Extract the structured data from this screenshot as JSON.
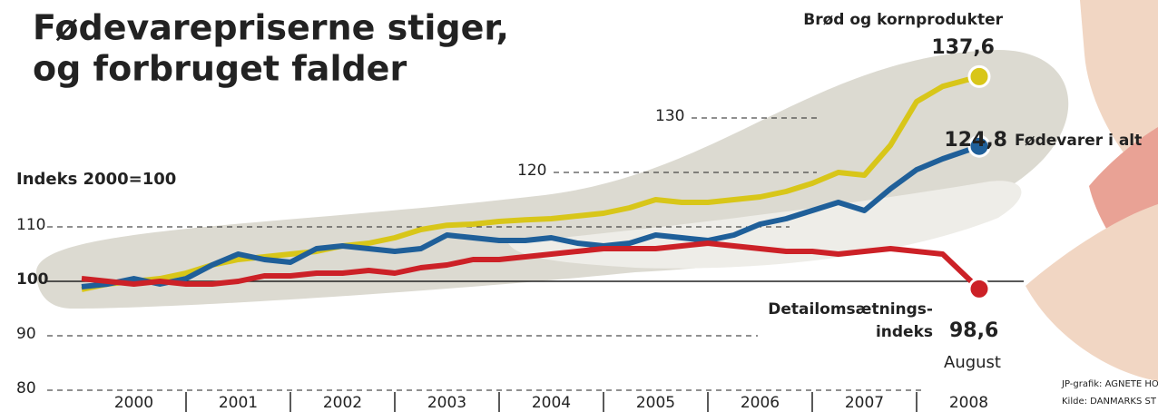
{
  "chart_data": {
    "type": "line",
    "title": [
      "Fødevarepriserne stiger,",
      "og forbruget falder"
    ],
    "y_label": "Indeks 2000=100",
    "x": [
      2000,
      2000.25,
      2000.5,
      2000.75,
      2001,
      2001.25,
      2001.5,
      2001.75,
      2002,
      2002.25,
      2002.5,
      2002.75,
      2003,
      2003.25,
      2003.5,
      2003.75,
      2004,
      2004.25,
      2004.5,
      2004.75,
      2005,
      2005.25,
      2005.5,
      2005.75,
      2006,
      2006.25,
      2006.5,
      2006.75,
      2007,
      2007.25,
      2007.5,
      2007.75,
      2008,
      2008.25,
      2008.6
    ],
    "series": [
      {
        "name": [
          "Brød og kornprodukter"
        ],
        "color": "#d8c619",
        "values": [
          98.5,
          99.5,
          100,
          100.5,
          101.5,
          103,
          104,
          104.5,
          105,
          105.5,
          106.5,
          107,
          108,
          109.5,
          110.3,
          110.5,
          111,
          111.3,
          111.5,
          112,
          112.5,
          113.5,
          115,
          114.5,
          114.5,
          115,
          115.5,
          116.5,
          118,
          120,
          119.5,
          125,
          133,
          135.8,
          137.6
        ],
        "value_labels": [
          null,
          null,
          null,
          null,
          null,
          null,
          null,
          null,
          null,
          null,
          null,
          null,
          null,
          null,
          null,
          null,
          null,
          null,
          null,
          null,
          null,
          null,
          null,
          null,
          null,
          null,
          null,
          null,
          null,
          null,
          null,
          null,
          null,
          null,
          "137,6"
        ]
      },
      {
        "name": [
          "Fødevarer i alt"
        ],
        "color": "#1f5f99",
        "values": [
          99,
          99.5,
          100.5,
          99.5,
          100.5,
          103,
          105,
          104,
          103.5,
          106,
          106.5,
          106,
          105.5,
          106,
          108.5,
          108,
          107.5,
          107.5,
          108,
          107,
          106.5,
          107,
          108.5,
          108,
          107.5,
          108.5,
          110.5,
          111.5,
          113,
          114.5,
          113,
          117,
          120.5,
          122.5,
          124.8
        ],
        "value_labels": [
          null,
          null,
          null,
          null,
          null,
          null,
          null,
          null,
          null,
          null,
          null,
          null,
          null,
          null,
          null,
          null,
          null,
          null,
          null,
          null,
          null,
          null,
          null,
          null,
          null,
          null,
          null,
          null,
          null,
          null,
          null,
          null,
          null,
          null,
          "124,8"
        ]
      },
      {
        "name": [
          "Detailomsætnings-",
          "indeks"
        ],
        "color": "#cc2127",
        "values": [
          100.5,
          100,
          99.5,
          100,
          99.5,
          99.5,
          100,
          101,
          101,
          101.5,
          101.5,
          102,
          101.5,
          102.5,
          103,
          104,
          104,
          104.5,
          105,
          105.5,
          106,
          106,
          106,
          106.5,
          107,
          106.5,
          106,
          105.5,
          105.5,
          105,
          105.5,
          106,
          105.5,
          105,
          98.6
        ],
        "value_labels": [
          null,
          null,
          null,
          null,
          null,
          null,
          null,
          null,
          null,
          null,
          null,
          null,
          null,
          null,
          null,
          null,
          null,
          null,
          null,
          null,
          null,
          null,
          null,
          null,
          null,
          null,
          null,
          null,
          null,
          null,
          null,
          null,
          null,
          null,
          "98,6"
        ]
      }
    ],
    "annotation": "August",
    "xlim": [
      2000,
      2009
    ],
    "xticks": [
      2000,
      2001,
      2002,
      2003,
      2004,
      2005,
      2006,
      2007,
      2008
    ],
    "ylim": [
      80,
      140
    ],
    "yticks": [
      80,
      90,
      100,
      110,
      120,
      130
    ],
    "grid": true,
    "credits": [
      "JP-grafik: AGNETE HO",
      "Kilde: DANMARKS ST"
    ]
  }
}
